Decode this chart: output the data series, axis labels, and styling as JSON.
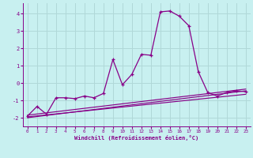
{
  "background_color": "#c8f0f0",
  "grid_color": "#b0d8d8",
  "line_color": "#880088",
  "xlabel": "Windchill (Refroidissement éolien,°C)",
  "xlim": [
    -0.5,
    23.5
  ],
  "ylim": [
    -2.5,
    4.6
  ],
  "yticks": [
    -2,
    -1,
    0,
    1,
    2,
    3,
    4
  ],
  "xticks": [
    0,
    1,
    2,
    3,
    4,
    5,
    6,
    7,
    8,
    9,
    10,
    11,
    12,
    13,
    14,
    15,
    16,
    17,
    18,
    19,
    20,
    21,
    22,
    23
  ],
  "series": [
    {
      "x": [
        0,
        1,
        2,
        3,
        4,
        5,
        6,
        7,
        8,
        9,
        10,
        11,
        12,
        13,
        14,
        15,
        16,
        17,
        18,
        19,
        20,
        21,
        22,
        23
      ],
      "y": [
        -1.9,
        -1.35,
        -1.8,
        -0.85,
        -0.85,
        -0.9,
        -0.75,
        -0.85,
        -0.6,
        1.35,
        -0.1,
        0.5,
        1.65,
        1.6,
        4.1,
        4.15,
        3.85,
        3.3,
        0.65,
        -0.55,
        -0.75,
        -0.55,
        -0.45,
        -0.5
      ],
      "marker": true
    },
    {
      "x": [
        0,
        23
      ],
      "y": [
        -1.85,
        -0.35
      ],
      "marker": false
    },
    {
      "x": [
        0,
        23
      ],
      "y": [
        -1.95,
        -0.65
      ],
      "marker": false
    },
    {
      "x": [
        0,
        23
      ],
      "y": [
        -2.0,
        -0.45
      ],
      "marker": false
    }
  ]
}
